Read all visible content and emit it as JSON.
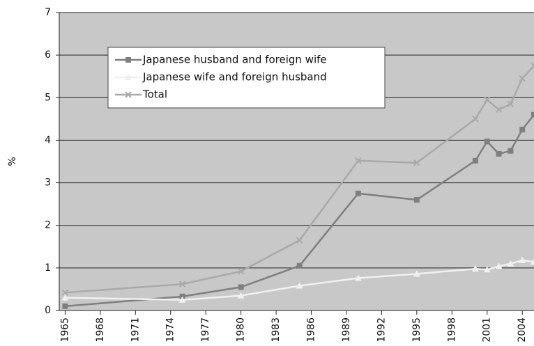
{
  "chart_data": {
    "type": "line",
    "y_label": "%",
    "x": [
      1965,
      1975,
      1980,
      1985,
      1990,
      1995,
      2000,
      2001,
      2002,
      2003,
      2004,
      2005
    ],
    "series": [
      {
        "name": "Japanese husband and foreign wife",
        "color": "#7f7f7f",
        "marker": "square",
        "values": [
          0.1,
          0.33,
          0.55,
          1.05,
          2.75,
          2.6,
          3.52,
          3.97,
          3.68,
          3.75,
          4.25,
          4.6
        ]
      },
      {
        "name": "Japanese wife and foreign husband",
        "color": "#f0f0f0",
        "marker": "triangle",
        "values": [
          0.3,
          0.25,
          0.35,
          0.58,
          0.76,
          0.86,
          0.98,
          0.96,
          1.04,
          1.1,
          1.18,
          1.14
        ]
      },
      {
        "name": "Total",
        "color": "#a9a9a9",
        "marker": "x",
        "values": [
          0.42,
          0.62,
          0.92,
          1.65,
          3.52,
          3.47,
          4.5,
          4.95,
          4.72,
          4.85,
          5.45,
          5.75
        ]
      }
    ],
    "xlim": [
      1964.5,
      2005
    ],
    "xticks": [
      1965,
      1968,
      1971,
      1974,
      1977,
      1980,
      1983,
      1986,
      1989,
      1992,
      1995,
      1998,
      2001,
      2004
    ],
    "ylim": [
      0,
      7
    ],
    "yticks": [
      0,
      1,
      2,
      3,
      4,
      5,
      6,
      7
    ],
    "grid": true,
    "legend": "upper left"
  }
}
